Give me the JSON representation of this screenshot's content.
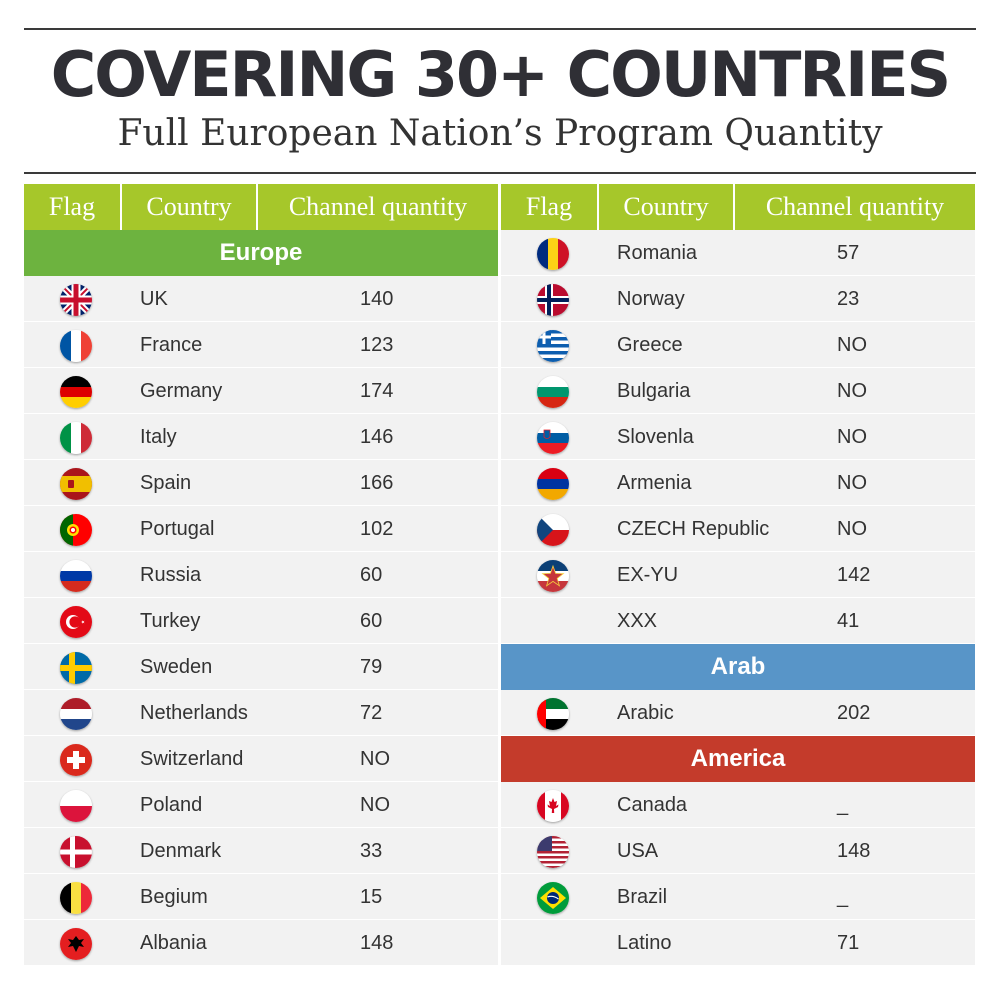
{
  "title": "COVERING 30+ COUNTRIES",
  "subtitle": "Full European Nation’s Program Quantity",
  "table_headers": [
    "Flag",
    "Country",
    "Channel quantity"
  ],
  "colors": {
    "header_green": "#a6c72a",
    "europe_green": "#6db33f",
    "arab_blue": "#5895c8",
    "america_red": "#c43b2b",
    "row_bg": "#f2f2f2"
  },
  "left": {
    "sections": [
      {
        "name": "Europe",
        "color": "#6db33f",
        "rows": [
          {
            "flag": "uk-flag-icon",
            "country": "UK",
            "qty": "140"
          },
          {
            "flag": "france-flag-icon",
            "country": "France",
            "qty": "123"
          },
          {
            "flag": "germany-flag-icon",
            "country": "Germany",
            "qty": "174"
          },
          {
            "flag": "italy-flag-icon",
            "country": "Italy",
            "qty": "146"
          },
          {
            "flag": "spain-flag-icon",
            "country": "Spain",
            "qty": "166"
          },
          {
            "flag": "portugal-flag-icon",
            "country": "Portugal",
            "qty": "102"
          },
          {
            "flag": "russia-flag-icon",
            "country": "Russia",
            "qty": "60"
          },
          {
            "flag": "turkey-flag-icon",
            "country": "Turkey",
            "qty": "60"
          },
          {
            "flag": "sweden-flag-icon",
            "country": "Sweden",
            "qty": "79"
          },
          {
            "flag": "netherlands-flag-icon",
            "country": "Netherlands",
            "qty": "72"
          },
          {
            "flag": "switzerland-flag-icon",
            "country": "Switzerland",
            "qty": "NO"
          },
          {
            "flag": "poland-flag-icon",
            "country": "Poland",
            "qty": "NO"
          },
          {
            "flag": "denmark-flag-icon",
            "country": "Denmark",
            "qty": "33"
          },
          {
            "flag": "belgium-flag-icon",
            "country": "Begium",
            "qty": "15"
          },
          {
            "flag": "albania-flag-icon",
            "country": "Albania",
            "qty": "148"
          }
        ]
      }
    ]
  },
  "right": {
    "sections": [
      {
        "name": "",
        "color": "",
        "rows": [
          {
            "flag": "romania-flag-icon",
            "country": "Romania",
            "qty": "57"
          },
          {
            "flag": "norway-flag-icon",
            "country": "Norway",
            "qty": "23"
          },
          {
            "flag": "greece-flag-icon",
            "country": "Greece",
            "qty": "NO"
          },
          {
            "flag": "bulgaria-flag-icon",
            "country": "Bulgaria",
            "qty": "NO"
          },
          {
            "flag": "slovenia-flag-icon",
            "country": "Slovenla",
            "qty": "NO"
          },
          {
            "flag": "armenia-flag-icon",
            "country": "Armenia",
            "qty": "NO"
          },
          {
            "flag": "czech-flag-icon",
            "country": "CZECH Republic",
            "qty": "NO"
          },
          {
            "flag": "yugoslavia-flag-icon",
            "country": "EX-YU",
            "qty": "142"
          },
          {
            "flag": "",
            "country": "XXX",
            "qty": "41"
          }
        ]
      },
      {
        "name": "Arab",
        "color": "#5895c8",
        "rows": [
          {
            "flag": "uae-flag-icon",
            "country": "Arabic",
            "qty": "202"
          }
        ]
      },
      {
        "name": "America",
        "color": "#c43b2b",
        "rows": [
          {
            "flag": "canada-flag-icon",
            "country": "Canada",
            "qty": "_"
          },
          {
            "flag": "usa-flag-icon",
            "country": "USA",
            "qty": "148"
          },
          {
            "flag": "brazil-flag-icon",
            "country": "Brazil",
            "qty": "_"
          },
          {
            "flag": "",
            "country": "Latino",
            "qty": "71"
          }
        ]
      }
    ]
  }
}
